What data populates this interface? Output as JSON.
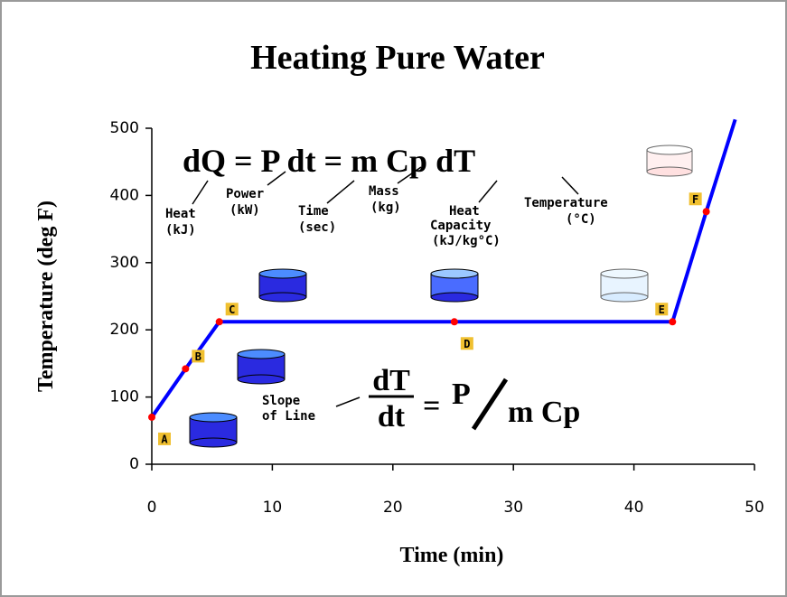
{
  "chart_data": {
    "type": "line",
    "title": "Heating Pure Water",
    "xlabel": "Time (min)",
    "ylabel": "Temperature (deg F)",
    "xlim": [
      0,
      50
    ],
    "ylim": [
      0,
      500
    ],
    "xticks": [
      0,
      10,
      20,
      30,
      40,
      50
    ],
    "yticks": [
      0,
      100,
      200,
      300,
      400,
      500
    ],
    "series": [
      {
        "color": "#0000ff",
        "marker_color": "#ff0000",
        "x": [
          0,
          2.8,
          5.6,
          25.1,
          43.2,
          46.0,
          48.4
        ],
        "values": [
          70,
          142,
          212,
          212,
          212,
          376,
          513
        ],
        "point_labels": [
          "A",
          "B",
          "C",
          "D",
          "E",
          "F",
          null
        ]
      }
    ],
    "annotations": {
      "equation": "dQ = P dt = m Cp dT",
      "heat": [
        "Heat",
        "(kJ)"
      ],
      "power": [
        "Power",
        "(kW)"
      ],
      "time": [
        "Time",
        "(sec)"
      ],
      "mass": [
        "Mass",
        "(kg)"
      ],
      "capacity": [
        "Heat",
        "Capacity",
        "(kJ/kg°C)"
      ],
      "temperature": [
        "Temperature",
        "(°C)"
      ],
      "slope": [
        "Slope",
        "of Line"
      ],
      "dT": "dT",
      "dt": "dt",
      "equals": "=",
      "P": "P",
      "mCp": "m Cp"
    }
  }
}
